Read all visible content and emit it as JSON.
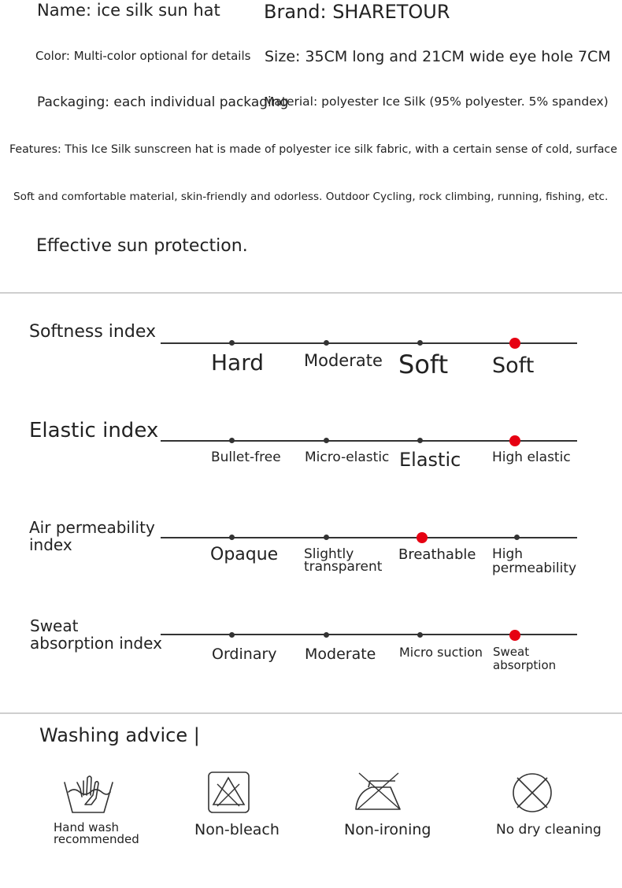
{
  "specs": {
    "name": "Name: ice silk sun hat",
    "brand": "Brand: SHARETOUR",
    "color": "Color: Multi-color optional for details",
    "size": "Size: 35CM long and 21CM wide eye hole 7CM",
    "packaging": "Packaging: each individual packaging",
    "material": "Material: polyester Ice Silk (95% polyester. 5% spandex)",
    "features": "Features: This Ice Silk sunscreen hat is made of polyester ice silk fabric, with a certain sense of cold, surface",
    "soft": "Soft and comfortable material, skin-friendly and odorless. Outdoor Cycling, rock climbing, running, fishing, etc.",
    "protection": "Effective sun protection."
  },
  "indices": [
    {
      "title": "Softness index",
      "levels": [
        "Hard",
        "Moderate",
        "Soft",
        "Soft"
      ],
      "selected": 3
    },
    {
      "title": "Elastic index",
      "levels": [
        "Bullet-free",
        "Micro-elastic",
        "Elastic",
        "High elastic"
      ],
      "selected": 3
    },
    {
      "title_line1": "Air permeability",
      "title_line2": "index",
      "levels": [
        "Opaque",
        "Slightly",
        "transparent",
        "Breathable",
        "High",
        "permeability"
      ],
      "selected": 2
    },
    {
      "title_line1": "Sweat",
      "title_line2": "absorption index",
      "levels": [
        "Ordinary",
        "Moderate",
        "Micro suction",
        "Sweat",
        "absorption"
      ],
      "selected": 3
    }
  ],
  "washing": {
    "title": "Washing advice |",
    "items": [
      {
        "label_line1": "Hand wash",
        "label_line2": "recommended",
        "icon": "hand-wash-icon"
      },
      {
        "label": "Non-bleach",
        "icon": "no-bleach-icon"
      },
      {
        "label": "Non-ironing",
        "icon": "no-iron-icon"
      },
      {
        "label": "No dry cleaning",
        "icon": "no-dry-clean-icon"
      }
    ]
  },
  "colors": {
    "selected_dot": "#e60012",
    "line": "#333333",
    "divider": "#cfcfcf"
  }
}
